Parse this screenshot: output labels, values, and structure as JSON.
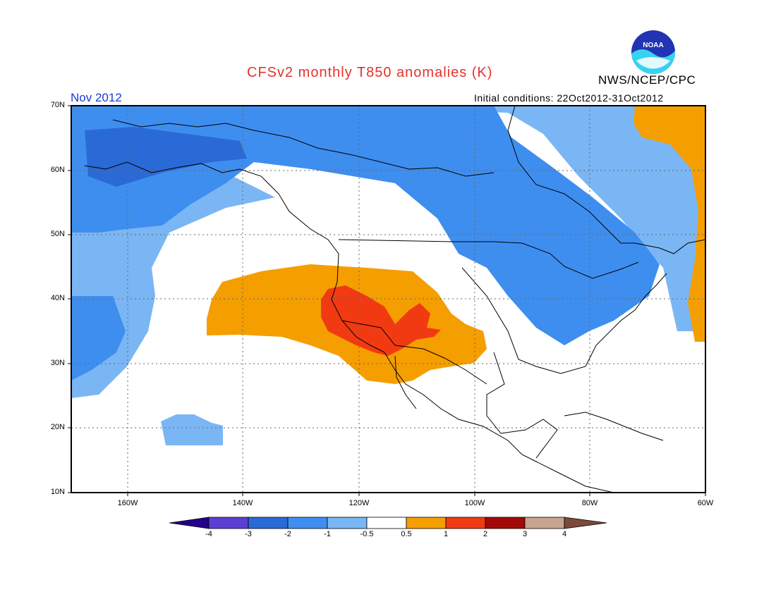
{
  "title": "CFSv2 monthly T850 anomalies (K)",
  "organization": "NWS/NCEP/CPC",
  "logo_text": "NOAA",
  "valid_month": "Nov 2012",
  "initial_conditions": "Initial conditions: 22Oct2012-31Oct2012",
  "map": {
    "lon_range": [
      -172,
      -60
    ],
    "lat_range": [
      10,
      70
    ],
    "lat_ticks": [
      "70N",
      "60N",
      "50N",
      "40N",
      "30N",
      "20N",
      "10N"
    ],
    "lon_ticks": [
      "160W",
      "140W",
      "120W",
      "100W",
      "80W",
      "60W"
    ]
  },
  "colorbar": {
    "levels": [
      "-4",
      "-3",
      "-2",
      "-1",
      "-0.5",
      "0.5",
      "1",
      "2",
      "3",
      "4"
    ],
    "colors": {
      "lt_-4": "#24008c",
      "-4_-3": "#5a3fd2",
      "-3_-2": "#2a6ad6",
      "-2_-1": "#3e8ef0",
      "-1_-0.5": "#7ab6f4",
      "-0.5_0.5": "#ffffff",
      "0.5_1": "#f59e00",
      "1_2": "#f23a12",
      "2_3": "#a20a0a",
      "3_4": "#c8a490",
      "gt_4": "#7a4a3c"
    }
  }
}
